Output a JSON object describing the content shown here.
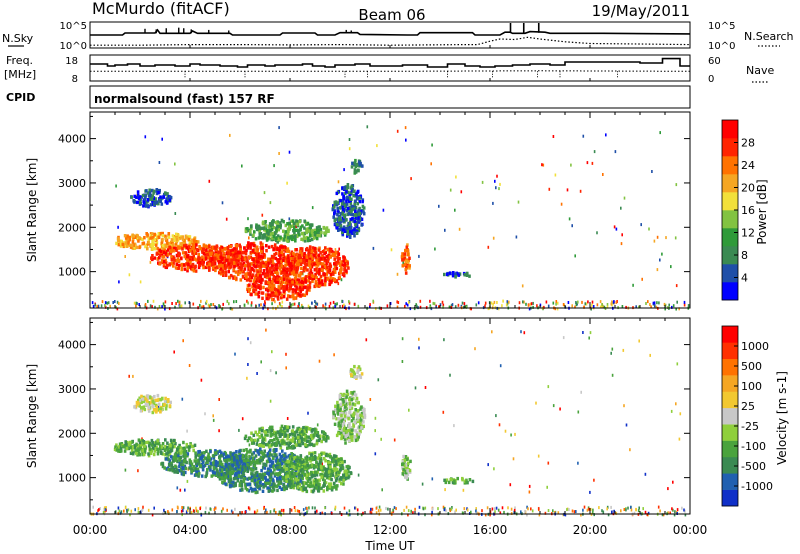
{
  "header": {
    "station": "McMurdo (fitACF)",
    "beam": "Beam 06",
    "date": "19/May/2011"
  },
  "noise_panel": {
    "left_label": "N.Sky",
    "right_label": "N.Search",
    "left_ticks": [
      "10^5",
      "10^0"
    ],
    "right_ticks": [
      "10^5",
      "10^0"
    ],
    "n_sky_log": [
      [
        0,
        3.0
      ],
      [
        1.3,
        3.0
      ],
      [
        1.4,
        3.35
      ],
      [
        2.6,
        3.35
      ],
      [
        2.7,
        3.9
      ],
      [
        2.8,
        3.3
      ],
      [
        4.0,
        3.3
      ],
      [
        4.1,
        3.7
      ],
      [
        4.3,
        3.3
      ],
      [
        5.6,
        3.3
      ],
      [
        5.7,
        3.0
      ],
      [
        6.4,
        3.0
      ],
      [
        7.6,
        3.0
      ],
      [
        7.7,
        3.35
      ],
      [
        9.0,
        3.35
      ],
      [
        9.1,
        3.0
      ],
      [
        9.8,
        3.0
      ],
      [
        10.0,
        3.4
      ],
      [
        10.7,
        3.4
      ],
      [
        10.8,
        3.1
      ],
      [
        12.7,
        3.0
      ],
      [
        13.1,
        3.0
      ],
      [
        13.2,
        3.4
      ],
      [
        15.3,
        3.4
      ],
      [
        15.4,
        3.0
      ],
      [
        16.4,
        3.0
      ],
      [
        16.6,
        3.5
      ],
      [
        16.8,
        3.5
      ],
      [
        16.9,
        3.3
      ],
      [
        17.4,
        3.3
      ],
      [
        17.6,
        3.6
      ],
      [
        18.2,
        3.5
      ],
      [
        18.4,
        3.3
      ],
      [
        20.5,
        3.3
      ],
      [
        24,
        3.2
      ]
    ],
    "n_sky_spikes": [
      [
        2.2,
        4.1
      ],
      [
        2.65,
        4.0
      ],
      [
        3.05,
        4.2
      ],
      [
        3.55,
        4.3
      ],
      [
        3.75,
        4.2
      ],
      [
        4.05,
        4.0
      ],
      [
        4.75,
        3.9
      ],
      [
        5.55,
        3.8
      ],
      [
        10.25,
        3.9
      ],
      [
        10.45,
        3.8
      ]
    ],
    "n_search_log": [
      [
        0,
        1.2
      ],
      [
        2.0,
        1.2
      ],
      [
        4.0,
        1.3
      ],
      [
        6.0,
        1.3
      ],
      [
        8.0,
        1.25
      ],
      [
        10.0,
        1.3
      ],
      [
        12.0,
        1.2
      ],
      [
        15.0,
        1.3
      ],
      [
        15.5,
        1.3
      ],
      [
        16.0,
        1.9
      ],
      [
        16.4,
        2.3
      ],
      [
        17.0,
        2.2
      ],
      [
        17.5,
        2.6
      ],
      [
        18.0,
        2.3
      ],
      [
        19.0,
        1.8
      ],
      [
        20.0,
        1.5
      ],
      [
        22.0,
        1.4
      ],
      [
        24,
        1.3
      ]
    ],
    "big_spikes": [
      16.82,
      17.35,
      17.95
    ]
  },
  "freq_panel": {
    "left_label": "Freq.",
    "left_unit": "[MHz]",
    "right_label": "Nave",
    "left_ticks": [
      "18",
      "8"
    ],
    "right_ticks": [
      "60",
      "0"
    ],
    "freq_steps": [
      [
        0,
        14.5
      ],
      [
        0.7,
        13.5
      ],
      [
        1.0,
        14.0
      ],
      [
        1.5,
        14.5
      ],
      [
        2.0,
        13.5
      ],
      [
        2.6,
        14.0
      ],
      [
        3.4,
        13.5
      ],
      [
        4.0,
        14.5
      ],
      [
        4.4,
        14.0
      ],
      [
        5.2,
        13.5
      ],
      [
        5.9,
        13.0
      ],
      [
        6.3,
        14.0
      ],
      [
        7.0,
        13.5
      ],
      [
        7.4,
        14.0
      ],
      [
        8.5,
        14.5
      ],
      [
        8.9,
        13.5
      ],
      [
        9.4,
        13.0
      ],
      [
        9.8,
        14.0
      ],
      [
        10.6,
        14.5
      ],
      [
        11.2,
        13.5
      ],
      [
        12.0,
        13.5
      ],
      [
        12.5,
        14.0
      ],
      [
        13.5,
        13.0
      ],
      [
        14.3,
        14.5
      ],
      [
        15.0,
        13.5
      ],
      [
        15.6,
        13.0
      ],
      [
        16.2,
        13.5
      ],
      [
        16.9,
        14.0
      ],
      [
        17.6,
        14.5
      ],
      [
        18.4,
        14.0
      ],
      [
        19.0,
        15.5
      ],
      [
        22.0,
        15.0
      ],
      [
        22.9,
        17.2
      ],
      [
        23.6,
        13.5
      ],
      [
        24,
        13.5
      ]
    ],
    "nave_dots": [
      [
        0,
        24
      ],
      [
        6,
        24
      ],
      [
        12,
        24
      ],
      [
        18,
        25
      ],
      [
        24,
        24
      ]
    ],
    "nave_dropouts": [
      3.8,
      6.2,
      10.2,
      11.1,
      14.3,
      16.1,
      17.9,
      18.8,
      21.1
    ]
  },
  "cpid": {
    "label": "CPID",
    "mode": "normalsound (fast) 157 RF"
  },
  "chart_data": [
    {
      "type": "heatmap",
      "name": "Power",
      "xlabel": "",
      "ylabel": "Slant Range [km]",
      "xlim": [
        0,
        24
      ],
      "ylim": [
        180,
        4600
      ],
      "y_ticks": [
        1000,
        2000,
        3000,
        4000
      ],
      "colorbar": {
        "label": "Power [dB]",
        "tick_labels": [
          "28",
          "24",
          "20",
          "16",
          "12",
          "8",
          "4"
        ],
        "colors": [
          "#0000ff",
          "#1f4fa8",
          "#3a8a52",
          "#2f9a39",
          "#82c341",
          "#f2e03a",
          "#f5a623",
          "#ff7200",
          "#ff2400",
          "#ff0000"
        ]
      },
      "echo_regions": [
        {
          "cx": 2.6,
          "cy": 1720,
          "w": 3.4,
          "h": 380,
          "level": 6
        },
        {
          "cx": 4.2,
          "cy": 1350,
          "w": 3.6,
          "h": 600,
          "level": 8
        },
        {
          "cx": 6.6,
          "cy": 1250,
          "w": 3.6,
          "h": 900,
          "level": 8
        },
        {
          "cx": 8.9,
          "cy": 1150,
          "w": 2.8,
          "h": 900,
          "level": 8
        },
        {
          "cx": 7.8,
          "cy": 1950,
          "w": 3.4,
          "h": 500,
          "level": 3
        },
        {
          "cx": 7.5,
          "cy": 650,
          "w": 2.6,
          "h": 500,
          "level": 8
        },
        {
          "cx": 12.6,
          "cy": 1320,
          "w": 0.35,
          "h": 700,
          "level": 7
        },
        {
          "cx": 2.4,
          "cy": 2700,
          "w": 1.6,
          "h": 400,
          "level": 1
        },
        {
          "cx": 10.3,
          "cy": 2400,
          "w": 1.3,
          "h": 1200,
          "level": 1
        },
        {
          "cx": 10.6,
          "cy": 3400,
          "w": 0.5,
          "h": 300,
          "level": 2
        },
        {
          "cx": 14.7,
          "cy": 960,
          "w": 1.2,
          "h": 120,
          "level": 1
        }
      ]
    },
    {
      "type": "heatmap",
      "name": "Velocity",
      "xlabel": "Time UT",
      "ylabel": "Slant Range [km]",
      "xlim": [
        0,
        24
      ],
      "ylim": [
        180,
        4600
      ],
      "y_ticks": [
        1000,
        2000,
        3000,
        4000
      ],
      "x_tick_labels": [
        "00:00",
        "04:00",
        "08:00",
        "12:00",
        "16:00",
        "20:00",
        "00:00"
      ],
      "colorbar": {
        "label": "Velocity [m s-1]",
        "tick_labels": [
          "1000",
          "500",
          "100",
          "25",
          "-25",
          "-100",
          "-500",
          "-1000"
        ],
        "colors": [
          "#1030c8",
          "#2060b0",
          "#3a8a52",
          "#4aa33d",
          "#8fcf3c",
          "#c8c8c8",
          "#f2c830",
          "#f5a623",
          "#ff7200",
          "#ff3000",
          "#ff0000"
        ]
      },
      "echo_regions": [
        {
          "cx": 2.6,
          "cy": 1720,
          "w": 3.4,
          "h": 380,
          "level": 3
        },
        {
          "cx": 4.6,
          "cy": 1350,
          "w": 3.6,
          "h": 600,
          "level": 2
        },
        {
          "cx": 6.8,
          "cy": 1200,
          "w": 3.8,
          "h": 1000,
          "level": 2
        },
        {
          "cx": 9.0,
          "cy": 1150,
          "w": 2.8,
          "h": 900,
          "level": 3
        },
        {
          "cx": 7.8,
          "cy": 1950,
          "w": 3.4,
          "h": 500,
          "level": 3
        },
        {
          "cx": 12.6,
          "cy": 1320,
          "w": 0.35,
          "h": 700,
          "level": 4
        },
        {
          "cx": 2.4,
          "cy": 2700,
          "w": 1.6,
          "h": 400,
          "level": 5
        },
        {
          "cx": 10.3,
          "cy": 2400,
          "w": 1.3,
          "h": 1200,
          "level": 4
        },
        {
          "cx": 10.6,
          "cy": 3400,
          "w": 0.5,
          "h": 300,
          "level": 5
        },
        {
          "cx": 14.7,
          "cy": 960,
          "w": 1.2,
          "h": 120,
          "level": 3
        }
      ]
    }
  ]
}
